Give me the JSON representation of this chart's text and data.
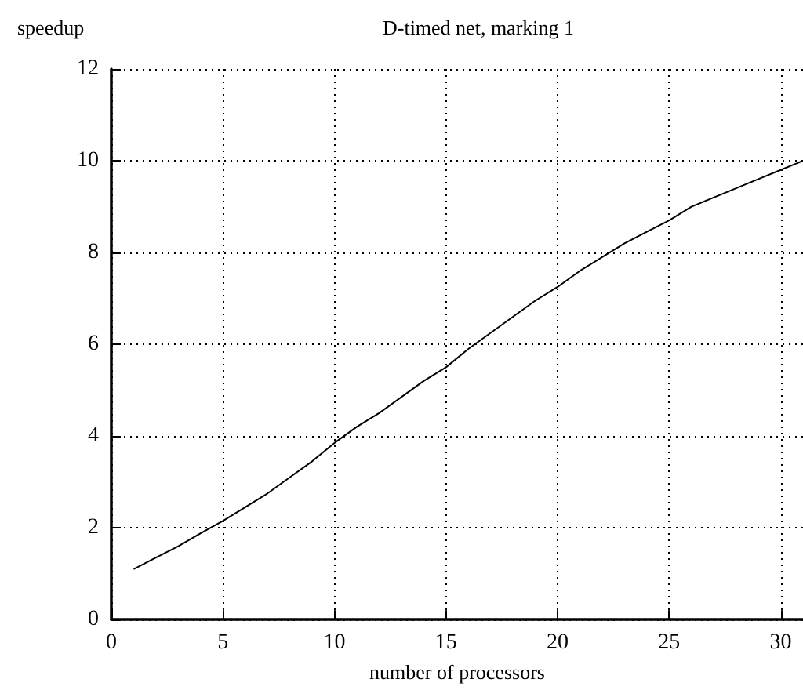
{
  "chart_data": {
    "type": "line",
    "title": "D-timed net, marking 1",
    "xlabel": "number of processors",
    "ylabel": "speedup",
    "x": [
      1,
      2,
      3,
      4,
      5,
      6,
      7,
      8,
      9,
      10,
      11,
      12,
      13,
      14,
      15,
      16,
      17,
      18,
      19,
      20,
      21,
      22,
      23,
      24,
      25,
      26,
      27,
      28,
      29,
      30,
      31
    ],
    "series": [
      {
        "color": "#000000",
        "values": [
          1.1,
          1.35,
          1.6,
          1.88,
          2.15,
          2.45,
          2.75,
          3.1,
          3.45,
          3.85,
          4.2,
          4.5,
          4.85,
          5.2,
          5.5,
          5.9,
          6.25,
          6.6,
          6.95,
          7.25,
          7.6,
          7.9,
          8.2,
          8.45,
          8.7,
          9.0,
          9.2,
          9.4,
          9.6,
          9.8,
          10.0
        ]
      }
    ],
    "xlim": [
      0,
      31
    ],
    "xticks": [
      0,
      5,
      10,
      15,
      20,
      25,
      30
    ],
    "ylim": [
      0,
      12
    ],
    "yticks": [
      0,
      2,
      4,
      6,
      8,
      10,
      12
    ],
    "grid": true,
    "marker": "none",
    "line_style": "solid"
  }
}
